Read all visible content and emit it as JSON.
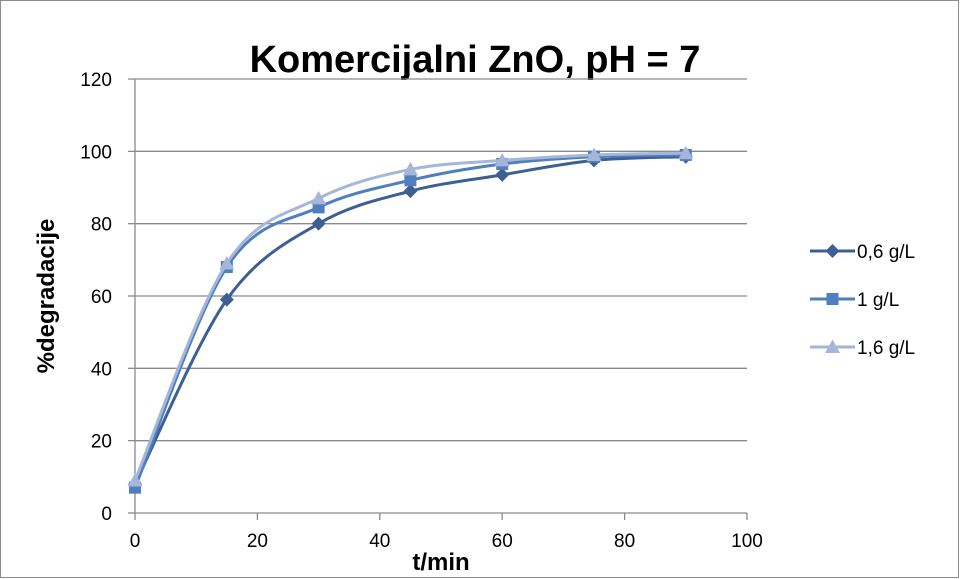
{
  "chart_data": {
    "type": "line",
    "title": "Komercijalni ZnO, pH = 7",
    "xlabel": "t/min",
    "ylabel": "%degradacije",
    "xlim": [
      0,
      100
    ],
    "ylim": [
      0,
      120
    ],
    "xticks": [
      0,
      20,
      40,
      60,
      80,
      100
    ],
    "yticks": [
      0,
      20,
      40,
      60,
      80,
      100,
      120
    ],
    "grid": "horizontal",
    "legend_position": "right",
    "x": [
      0,
      15,
      30,
      45,
      60,
      75,
      90
    ],
    "series": [
      {
        "name": "0,6 g/L",
        "marker": "diamond",
        "color": "#3d5f94",
        "values": [
          8,
          59,
          80,
          89,
          93.5,
          97.5,
          98.5
        ]
      },
      {
        "name": "1 g/L",
        "marker": "square",
        "color": "#4f7fbf",
        "values": [
          7,
          68,
          84.5,
          92,
          96.5,
          98.5,
          99
        ]
      },
      {
        "name": "1,6 g/L",
        "marker": "triangle",
        "color": "#a4b7d8",
        "values": [
          9,
          69,
          87,
          95,
          97.5,
          99,
          99.5
        ]
      }
    ]
  }
}
